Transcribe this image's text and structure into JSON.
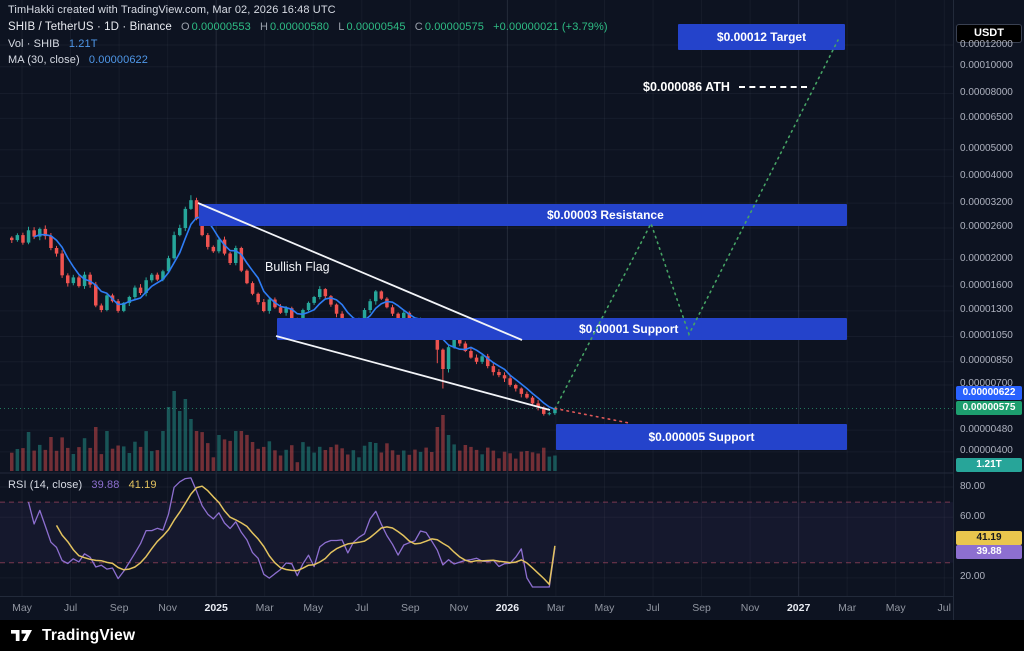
{
  "credit": "TimHakki created with TradingView.com, Mar 02, 2026 16:48 UTC",
  "symbol_legend": {
    "title": "SHIB / TetherUS · 1D · Binance",
    "open_label": "O",
    "open": "0.00000553",
    "high_label": "H",
    "high": "0.00000580",
    "low_label": "L",
    "low": "0.00000545",
    "close_label": "C",
    "close": "0.00000575",
    "change": "+0.00000021 (+3.79%)"
  },
  "volume_legend": {
    "label": "Vol · SHIB",
    "value": "1.21T"
  },
  "ma_legend": {
    "label": "MA (30, close)",
    "value": "0.00000622"
  },
  "rsi_legend": {
    "label": "RSI (14, close)",
    "value_rsi": "39.88",
    "value_ma": "41.19"
  },
  "annotations": {
    "target": {
      "label": "$0.00012 Target",
      "price": 0.00012
    },
    "ath": {
      "label": "$0.000086 ATH",
      "price": 8.6e-05
    },
    "resistance": {
      "label": "$0.00003 Resistance",
      "price": 3e-05
    },
    "support1": {
      "label": "$0.00001 Support",
      "price": 1e-05
    },
    "support2": {
      "label": "$0.000005 Support",
      "price": 5e-06
    },
    "flag": {
      "label": "Bullish Flag"
    }
  },
  "price_scale": {
    "currency": "USDT",
    "badges": {
      "ma": "0.00000622",
      "last": "0.00000575",
      "volume": "1.21T"
    }
  },
  "rsi_scale": {
    "badges": {
      "ma": "41.19",
      "rsi": "39.88"
    }
  },
  "time_scale": {
    "labels": [
      "May",
      "Jul",
      "Sep",
      "Nov",
      "2025",
      "Mar",
      "May",
      "Jul",
      "Sep",
      "Nov",
      "2026",
      "Mar",
      "May",
      "Jul",
      "Sep",
      "Nov",
      "2027",
      "Mar",
      "May",
      "Jul"
    ],
    "year_indices": [
      4,
      10,
      16
    ]
  },
  "footer": {
    "brand": "TradingView"
  },
  "colors": {
    "background": "#0d1321",
    "band_blue": "#2443cb",
    "candle_up": "#26a69a",
    "candle_down": "#ef5350",
    "ma_line": "#2e7df6",
    "projection_green": "#46a465",
    "projection_red": "#e05858",
    "rsi_line": "#8d6fd0",
    "rsi_ma_line": "#e3c35f",
    "badge_last": "#1d9e6e",
    "badge_ma": "#2962ff",
    "badge_volume": "#27a599",
    "badge_rsi": "#8d6fd0",
    "badge_rsi_ma": "#e9c64d",
    "text_green": "#2ebd85",
    "value_blue": "#4f97e8"
  },
  "chart_data": {
    "type": "candlestick",
    "title": "SHIB / TetherUS daily chart with bullish flag and price targets",
    "symbol": "SHIB/USDT (Binance)",
    "log_scale": true,
    "x_range_labels": [
      "May 2024",
      "Jul 2027"
    ],
    "interval_of_points": "weekly approximation of the daily series",
    "price_unit_multiplier": 1e-06,
    "closes_micro_usdt": [
      23.5,
      24.5,
      23.0,
      25.5,
      24.2,
      25.8,
      24.3,
      22.0,
      21.0,
      17.5,
      16.4,
      17.2,
      16.0,
      17.6,
      16.2,
      13.6,
      13.1,
      14.8,
      14.1,
      13.0,
      13.9,
      14.6,
      15.8,
      15.1,
      16.8,
      17.6,
      16.9,
      18.1,
      20.2,
      24.5,
      26.0,
      30.5,
      32.8,
      28.0,
      24.5,
      22.2,
      21.4,
      23.6,
      21.0,
      19.4,
      22.0,
      18.2,
      16.4,
      15.0,
      14.0,
      13.0,
      14.3,
      13.4,
      12.8,
      13.3,
      12.1,
      11.9,
      13.1,
      13.9,
      14.6,
      15.6,
      14.7,
      13.7,
      12.7,
      11.8,
      11.2,
      11.9,
      12.1,
      13.1,
      14.1,
      15.3,
      14.4,
      13.4,
      12.7,
      12.1,
      12.8,
      12.2,
      11.5,
      12.0,
      11.2,
      10.7,
      9.4,
      8.0,
      9.6,
      10.3,
      9.9,
      9.3,
      8.8,
      8.5,
      8.9,
      8.2,
      7.8,
      7.6,
      7.4,
      7.0,
      6.8,
      6.5,
      6.3,
      6.0,
      5.8,
      5.5,
      5.53,
      5.75
    ],
    "last_candle_micro": {
      "o": 5.53,
      "h": 5.8,
      "l": 5.45,
      "c": 5.75
    },
    "wick_overrides": {
      "32": {
        "h": 34.2
      },
      "76": {
        "l": 8.4
      },
      "77": {
        "l": 6.8
      }
    },
    "volume_spikes": {
      "9": 0.42,
      "15": 0.55,
      "27": 0.5,
      "28": 0.8,
      "29": 1.0,
      "30": 0.75,
      "31": 0.9,
      "32": 0.65,
      "33": 0.5,
      "37": 0.45,
      "40": 0.5,
      "65": 0.35,
      "76": 0.55,
      "77": 0.7,
      "78": 0.45
    },
    "indicators": {
      "ma_window_weeks": 5,
      "rsi_period": 14,
      "rsi_ma_window": 6
    },
    "price_axis_ticks": [
      0.00012,
      0.0001,
      8e-05,
      6.5e-05,
      5e-05,
      4e-05,
      3.2e-05,
      2.6e-05,
      2e-05,
      1.6e-05,
      1.3e-05,
      1.05e-05,
      8.5e-06,
      7e-06,
      4.8e-06,
      4e-06
    ],
    "rsi_axis_ticks": [
      80,
      60,
      20
    ],
    "rsi_bands": {
      "upper": 70,
      "lower": 30
    },
    "last_values": {
      "price": 5.75e-06,
      "ma30": 6.22e-06,
      "volume": "1.21T",
      "rsi": 39.88,
      "rsi_ma": 41.19
    },
    "projection": {
      "up_path_prices": [
        5.75e-06,
        2.7e-05,
        1.07e-05,
        0.000125
      ],
      "down_target_price": 5e-06
    }
  }
}
